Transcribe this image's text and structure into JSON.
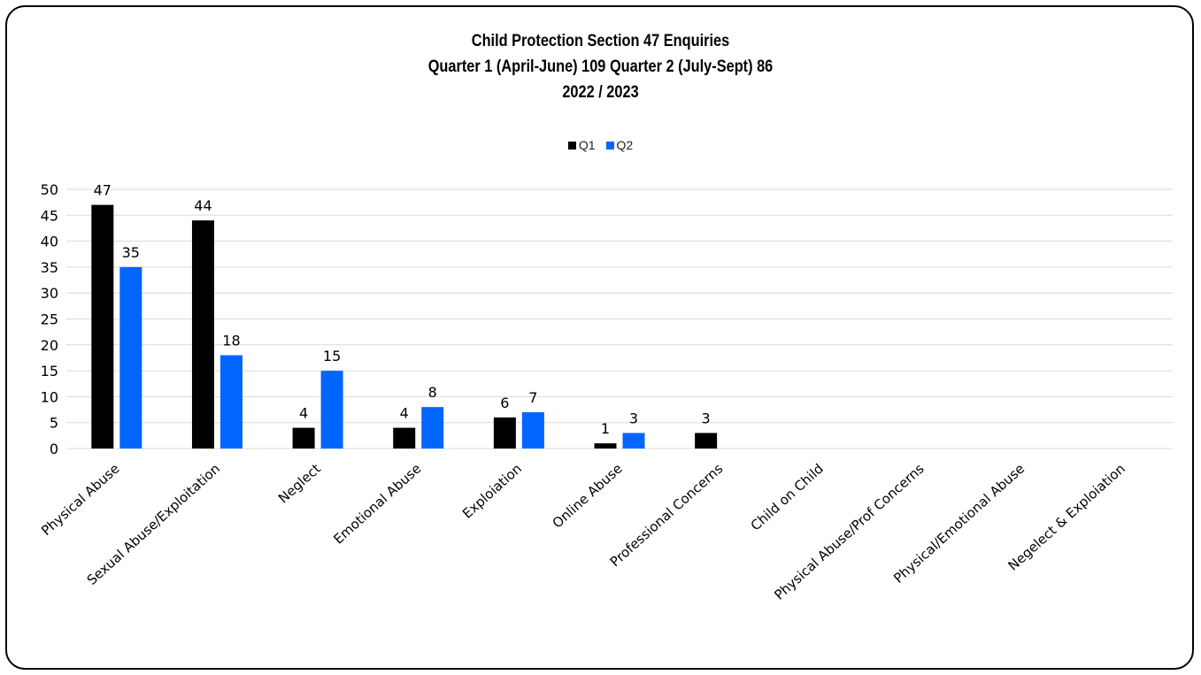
{
  "chart_data": {
    "type": "bar",
    "title_lines": [
      "Child Protection Section 47 Enquiries",
      "Quarter 1 (April-June) 109  Quarter 2 (July-Sept) 86",
      "2022 / 2023"
    ],
    "categories": [
      "Physical Abuse",
      "Sexual Abuse/Exploitation",
      "Neglect",
      "Emotional Abuse",
      "Exploiation",
      "Online Abuse",
      "Professional Concerns",
      "Child on Child",
      "Physical Abuse/Prof Concerns",
      "Physical/Emotional Abuse",
      "Negelect & Exploiation"
    ],
    "series": [
      {
        "name": "Q1",
        "color": "#000000",
        "values": [
          47,
          44,
          4,
          4,
          6,
          1,
          3,
          null,
          null,
          null,
          null
        ]
      },
      {
        "name": "Q2",
        "color": "#0066ff",
        "values": [
          35,
          18,
          15,
          8,
          7,
          3,
          null,
          null,
          null,
          null,
          null
        ]
      }
    ],
    "ylim": [
      0,
      50
    ],
    "yticks": [
      0,
      5,
      10,
      15,
      20,
      25,
      30,
      35,
      40,
      45,
      50
    ],
    "grid": true,
    "legend_position": "top-center",
    "xlabel": "",
    "ylabel": ""
  }
}
